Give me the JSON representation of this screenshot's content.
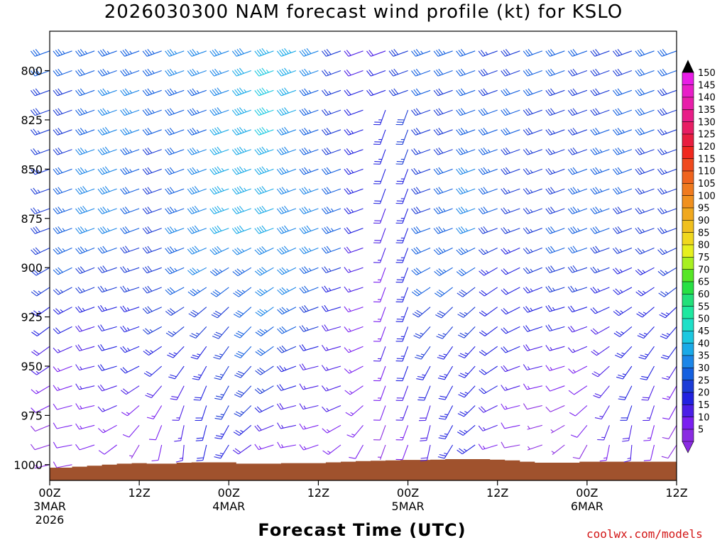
{
  "chart_data": {
    "type": "wind-barb-time-height",
    "title": "2026030300 NAM forecast wind profile (kt) for KSLO",
    "xlabel": "Forecast Time (UTC)",
    "credit": "coolwx.com/models",
    "y_axis": {
      "quantity": "pressure (hPa)",
      "range": [
        1008,
        780
      ],
      "ticks": [
        800,
        825,
        850,
        875,
        900,
        925,
        950,
        975,
        1000
      ],
      "tick_labels": [
        "800",
        "825",
        "850",
        "875",
        "900",
        "925",
        "950",
        "975",
        "1000"
      ],
      "barb_levels": [
        790,
        800,
        810,
        820,
        830,
        840,
        850,
        860,
        870,
        880,
        890,
        900,
        910,
        920,
        930,
        940,
        950,
        960,
        970,
        980,
        990,
        1000
      ]
    },
    "x_axis": {
      "quantity": "forecast hour",
      "range": [
        0,
        84
      ],
      "ticks": [
        {
          "hour": 0,
          "label": "00Z",
          "sub1": "3MAR",
          "sub2": "2026"
        },
        {
          "hour": 12,
          "label": "12Z",
          "sub1": "",
          "sub2": ""
        },
        {
          "hour": 24,
          "label": "00Z",
          "sub1": "4MAR",
          "sub2": ""
        },
        {
          "hour": 36,
          "label": "12Z",
          "sub1": "",
          "sub2": ""
        },
        {
          "hour": 48,
          "label": "00Z",
          "sub1": "5MAR",
          "sub2": ""
        },
        {
          "hour": 60,
          "label": "12Z",
          "sub1": "",
          "sub2": ""
        },
        {
          "hour": 72,
          "label": "00Z",
          "sub1": "6MAR",
          "sub2": ""
        },
        {
          "hour": 84,
          "label": "12Z",
          "sub1": "",
          "sub2": ""
        }
      ],
      "barb_hours_step": 3
    },
    "wind_regime": {
      "description": "approximate wind fields sampled from the figure",
      "upper_direction_deg": 250,
      "upper_speed_kt": [
        28,
        32,
        35,
        36,
        33,
        31,
        34,
        37,
        40,
        42,
        44,
        40,
        36,
        30,
        22,
        20,
        26,
        30,
        32,
        34,
        30,
        28,
        28,
        30,
        31,
        31,
        30,
        29,
        28
      ],
      "low_level_speed_kt": [
        8,
        7,
        6,
        6,
        7,
        12,
        16,
        18,
        18,
        17,
        15,
        14,
        12,
        10,
        8,
        6,
        14,
        20,
        22,
        20,
        12,
        8,
        6,
        5,
        6,
        10,
        14,
        12,
        10
      ]
    },
    "terrain": {
      "fill_color": "#a0522d",
      "surface_pressure_hpa": [
        1001.5,
        1001.5,
        1001,
        1000.5,
        1000,
        999.5,
        999.2,
        999.5,
        999.5,
        999,
        998.8,
        998.8,
        998.8,
        999.5,
        999.5,
        999.5,
        999.2,
        999.2,
        999.2,
        998.8,
        998.5,
        998.2,
        998,
        997.8,
        997.6,
        997.6,
        997.5,
        997.2,
        997.2,
        997.2,
        997.5,
        997.8,
        998.5,
        999,
        999,
        999,
        998.5,
        998.5,
        998.5,
        998.5,
        998.5,
        998.5,
        998.5
      ]
    },
    "colorbar": {
      "units": "kt",
      "levels": [
        "5",
        "10",
        "15",
        "20",
        "25",
        "30",
        "35",
        "40",
        "45",
        "50",
        "55",
        "60",
        "65",
        "70",
        "75",
        "80",
        "85",
        "90",
        "95",
        "100",
        "105",
        "110",
        "115",
        "120",
        "125",
        "130",
        "135",
        "140",
        "145",
        "150"
      ],
      "colors": [
        "#8a2be2",
        "#7a1ff0",
        "#4b1ee6",
        "#2222e0",
        "#1c3cd6",
        "#1460e0",
        "#1c86e8",
        "#1aaae8",
        "#1cc8e0",
        "#1ee0c8",
        "#1ee8a0",
        "#22e07a",
        "#28e044",
        "#56e626",
        "#a8f020",
        "#e6f01e",
        "#f0d81e",
        "#f0c01e",
        "#f0a81e",
        "#f0901e",
        "#f07a1e",
        "#f0641e",
        "#f04a1e",
        "#f0281e",
        "#e81e40",
        "#e81e64",
        "#e81e88",
        "#e81eaa",
        "#e81ec8",
        "#e81ee6"
      ]
    }
  }
}
